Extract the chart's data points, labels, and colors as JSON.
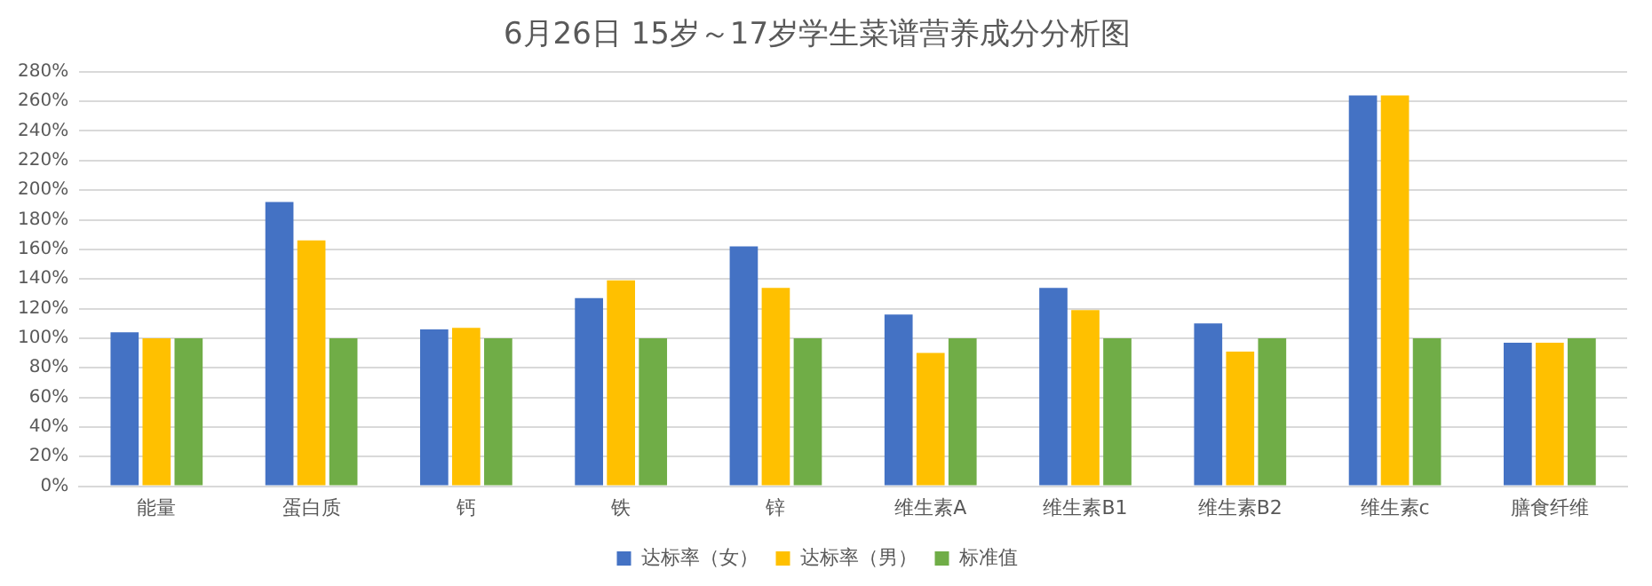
{
  "chart_data": {
    "type": "bar",
    "title": "6月26日 15岁～17岁学生菜谱营养成分分析图",
    "categories": [
      "能量",
      "蛋白质",
      "钙",
      "铁",
      "锌",
      "维生素A",
      "维生素B1",
      "维生素B2",
      "维生素c",
      "膳食纤维"
    ],
    "series": [
      {
        "name": "达标率（女）",
        "color": "#4472c4",
        "values": [
          104,
          192,
          106,
          127,
          162,
          116,
          134,
          110,
          264,
          97
        ]
      },
      {
        "name": "达标率（男）",
        "color": "#ffc000",
        "values": [
          100,
          166,
          107,
          139,
          134,
          90,
          119,
          91,
          264,
          97
        ]
      },
      {
        "name": "标准值",
        "color": "#70ad47",
        "values": [
          100,
          100,
          100,
          100,
          100,
          100,
          100,
          100,
          100,
          100
        ]
      }
    ],
    "ylim": [
      0,
      280
    ],
    "yticks": [
      {
        "value": 0,
        "label": "0%"
      },
      {
        "value": 20,
        "label": "20%"
      },
      {
        "value": 40,
        "label": "40%"
      },
      {
        "value": 60,
        "label": "60%"
      },
      {
        "value": 80,
        "label": "80%"
      },
      {
        "value": 100,
        "label": "100%"
      },
      {
        "value": 120,
        "label": "120%"
      },
      {
        "value": 140,
        "label": "140%"
      },
      {
        "value": 160,
        "label": "160%"
      },
      {
        "value": 180,
        "label": "180%"
      },
      {
        "value": 200,
        "label": "200%"
      },
      {
        "value": 220,
        "label": "220%"
      },
      {
        "value": 240,
        "label": "240%"
      },
      {
        "value": 260,
        "label": "260%"
      },
      {
        "value": 280,
        "label": "280%"
      }
    ],
    "grid": "y",
    "legend": "bottom"
  }
}
